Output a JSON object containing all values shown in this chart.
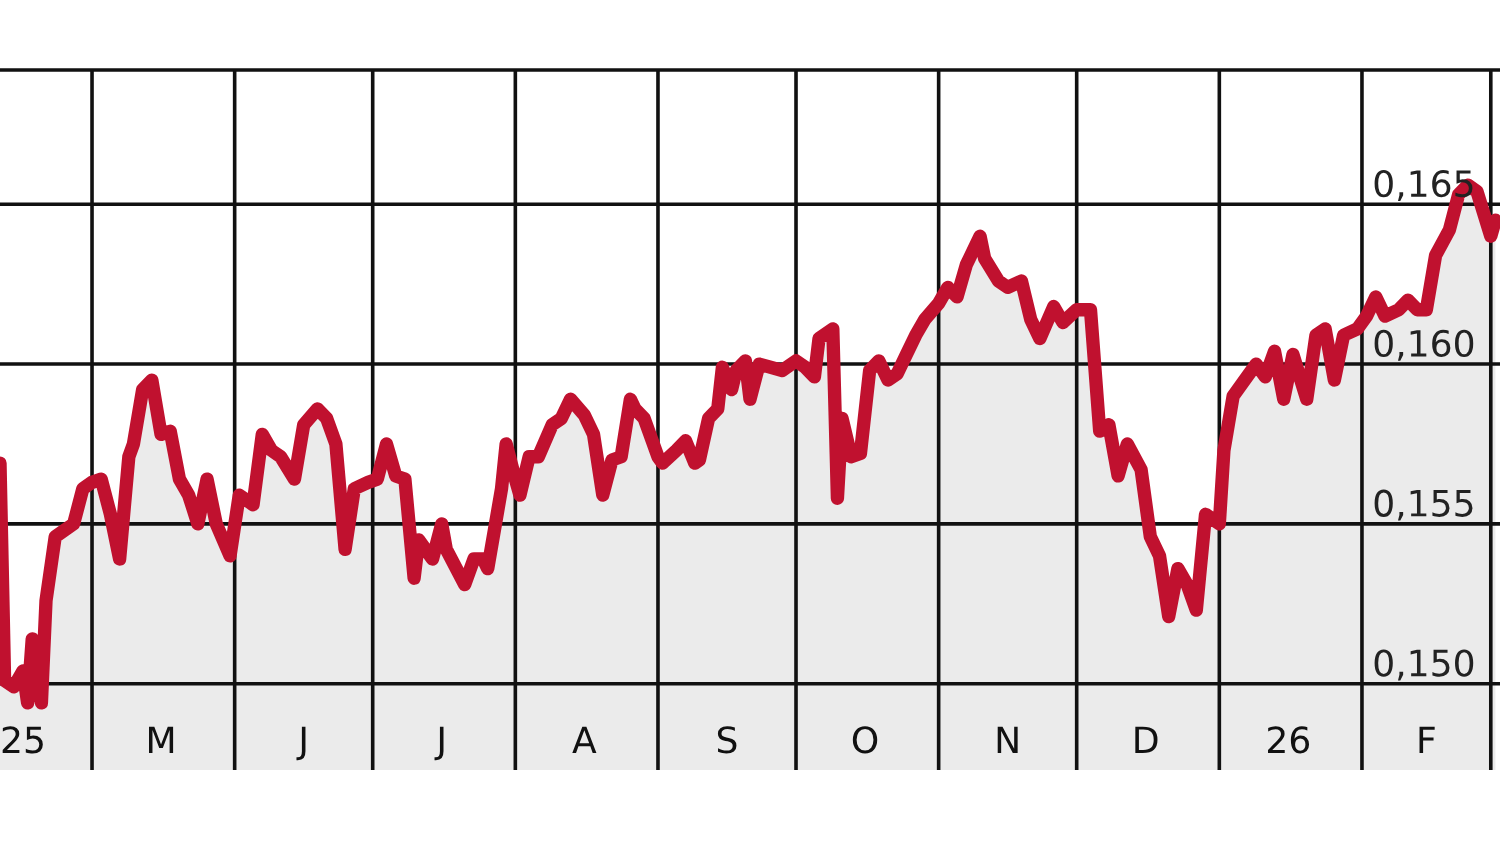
{
  "chart_data": {
    "type": "area",
    "x": [
      "2025-04-11",
      "2025-04-12",
      "2025-04-14",
      "2025-04-16",
      "2025-04-17",
      "2025-04-18",
      "2025-04-20",
      "2025-04-21",
      "2025-04-23",
      "2025-04-25",
      "2025-04-27",
      "2025-04-29",
      "2025-05-01",
      "2025-05-03",
      "2025-05-05",
      "2025-05-07",
      "2025-05-09",
      "2025-05-10",
      "2025-05-12",
      "2025-05-14",
      "2025-05-16",
      "2025-05-18",
      "2025-05-20",
      "2025-05-22",
      "2025-05-24",
      "2025-05-26",
      "2025-05-28",
      "2025-05-31",
      "2025-06-02",
      "2025-06-05",
      "2025-06-07",
      "2025-06-09",
      "2025-06-11",
      "2025-06-14",
      "2025-06-16",
      "2025-06-19",
      "2025-06-21",
      "2025-06-23",
      "2025-06-25",
      "2025-06-27",
      "2025-06-30",
      "2025-07-02",
      "2025-07-04",
      "2025-07-06",
      "2025-07-08",
      "2025-07-10",
      "2025-07-11",
      "2025-07-14",
      "2025-07-16",
      "2025-07-17",
      "2025-07-21",
      "2025-07-23",
      "2025-07-25",
      "2025-07-26",
      "2025-07-29",
      "2025-07-30",
      "2025-08-01",
      "2025-08-02",
      "2025-08-04",
      "2025-08-06",
      "2025-08-09",
      "2025-08-11",
      "2025-08-13",
      "2025-08-16",
      "2025-08-18",
      "2025-08-20",
      "2025-08-22",
      "2025-08-24",
      "2025-08-26",
      "2025-08-27",
      "2025-08-29",
      "2025-09-01",
      "2025-09-02",
      "2025-09-05",
      "2025-09-07",
      "2025-09-09",
      "2025-09-10",
      "2025-09-12",
      "2025-09-14",
      "2025-09-15",
      "2025-09-17",
      "2025-09-18",
      "2025-09-20",
      "2025-09-21",
      "2025-09-23",
      "2025-09-28",
      "2025-10-01",
      "2025-10-03",
      "2025-10-05",
      "2025-10-06",
      "2025-10-09",
      "2025-10-10",
      "2025-10-11",
      "2025-10-13",
      "2025-10-15",
      "2025-10-17",
      "2025-10-19",
      "2025-10-21",
      "2025-10-23",
      "2025-10-25",
      "2025-10-27",
      "2025-10-29",
      "2025-11-01",
      "2025-11-03",
      "2025-11-05",
      "2025-11-07",
      "2025-11-10",
      "2025-11-11",
      "2025-11-14",
      "2025-11-16",
      "2025-11-19",
      "2025-11-21",
      "2025-11-23",
      "2025-11-26",
      "2025-11-28",
      "2025-12-01",
      "2025-12-04",
      "2025-12-06",
      "2025-12-08",
      "2025-12-10",
      "2025-12-12",
      "2025-12-15",
      "2025-12-17",
      "2025-12-19",
      "2025-12-21",
      "2025-12-23",
      "2025-12-25",
      "2025-12-27",
      "2025-12-29",
      "2026-01-01",
      "2026-01-02",
      "2026-01-04",
      "2026-01-07",
      "2026-01-09",
      "2026-01-11",
      "2026-01-13",
      "2026-01-15",
      "2026-01-17",
      "2026-01-20",
      "2026-01-22",
      "2026-01-24",
      "2026-01-26",
      "2026-01-28",
      "2026-01-31",
      "2026-02-02",
      "2026-02-04",
      "2026-02-06",
      "2026-02-09",
      "2026-02-11",
      "2026-02-13",
      "2026-02-15",
      "2026-02-17",
      "2026-02-20",
      "2026-02-22",
      "2026-02-24",
      "2026-02-26",
      "2026-03-01",
      "2026-03-02"
    ],
    "series": [
      {
        "color": "#c0112f",
        "values": [
          0.1569,
          0.1501,
          0.1499,
          0.1504,
          0.1494,
          0.1514,
          0.1494,
          0.1526,
          0.1546,
          0.1548,
          0.155,
          0.1561,
          0.1563,
          0.1564,
          0.1553,
          0.1539,
          0.1571,
          0.1575,
          0.1592,
          0.1595,
          0.1578,
          0.1579,
          0.1564,
          0.1559,
          0.155,
          0.1564,
          0.155,
          0.154,
          0.1559,
          0.1556,
          0.1578,
          0.1573,
          0.1571,
          0.1564,
          0.1581,
          0.1586,
          0.1583,
          0.1575,
          0.1542,
          0.1561,
          0.1563,
          0.1564,
          0.1575,
          0.1565,
          0.1564,
          0.1533,
          0.1545,
          0.1539,
          0.155,
          0.1542,
          0.1531,
          0.1539,
          0.1539,
          0.1536,
          0.1561,
          0.1575,
          0.1564,
          0.1559,
          0.1571,
          0.1571,
          0.1581,
          0.1583,
          0.1589,
          0.1584,
          0.1578,
          0.1559,
          0.157,
          0.1571,
          0.1589,
          0.1586,
          0.1583,
          0.1571,
          0.1569,
          0.1573,
          0.1576,
          0.1569,
          0.157,
          0.1583,
          0.1586,
          0.1599,
          0.1592,
          0.1598,
          0.1601,
          0.1589,
          0.16,
          0.1598,
          0.1601,
          0.1599,
          0.1596,
          0.1608,
          0.1611,
          0.1558,
          0.1583,
          0.1571,
          0.1572,
          0.1598,
          0.1601,
          0.1595,
          0.1597,
          0.1603,
          0.1609,
          0.1614,
          0.1619,
          0.1624,
          0.1621,
          0.1631,
          0.164,
          0.1633,
          0.1626,
          0.1624,
          0.1626,
          0.1614,
          0.1608,
          0.1618,
          0.1613,
          0.1617,
          0.1617,
          0.1579,
          0.1581,
          0.1565,
          0.1575,
          0.1567,
          0.1546,
          0.154,
          0.1521,
          0.1536,
          0.1531,
          0.1523,
          0.1553,
          0.155,
          0.1573,
          0.159,
          0.1596,
          0.16,
          0.1596,
          0.1604,
          0.1589,
          0.1603,
          0.1589,
          0.1609,
          0.1611,
          0.1595,
          0.1609,
          0.1611,
          0.1615,
          0.1621,
          0.1615,
          0.1617,
          0.162,
          0.1617,
          0.1617,
          0.1634,
          0.1642,
          0.1653,
          0.1656,
          0.1654,
          0.164,
          0.1645
        ]
      }
    ],
    "xlim": [
      "2025-04-11",
      "2026-03-03"
    ],
    "xticks": [
      {
        "value": "2025-04-16",
        "label": "25"
      },
      {
        "value": "2025-05-01",
        "label": null
      },
      {
        "value": "2025-05-16",
        "label": "M"
      },
      {
        "value": "2025-06-01",
        "label": null
      },
      {
        "value": "2025-06-16",
        "label": "J"
      },
      {
        "value": "2025-07-01",
        "label": null
      },
      {
        "value": "2025-07-16",
        "label": "J"
      },
      {
        "value": "2025-08-01",
        "label": null
      },
      {
        "value": "2025-08-16",
        "label": "A"
      },
      {
        "value": "2025-09-01",
        "label": null
      },
      {
        "value": "2025-09-16",
        "label": "S"
      },
      {
        "value": "2025-10-01",
        "label": null
      },
      {
        "value": "2025-10-16",
        "label": "O"
      },
      {
        "value": "2025-11-01",
        "label": null
      },
      {
        "value": "2025-11-16",
        "label": "N"
      },
      {
        "value": "2025-12-01",
        "label": null
      },
      {
        "value": "2025-12-16",
        "label": "D"
      },
      {
        "value": "2026-01-01",
        "label": null
      },
      {
        "value": "2026-01-16",
        "label": "26"
      },
      {
        "value": "2026-02-01",
        "label": null
      },
      {
        "value": "2026-02-15",
        "label": "F"
      },
      {
        "value": "2026-03-01",
        "label": null
      }
    ],
    "ylim": [
      0.1473,
      0.1692
    ],
    "yticks": [
      {
        "value": 0.15,
        "label": "0,150"
      },
      {
        "value": 0.155,
        "label": "0,155"
      },
      {
        "value": 0.16,
        "label": "0,160"
      },
      {
        "value": 0.165,
        "label": "0,165"
      }
    ],
    "grid": true
  }
}
